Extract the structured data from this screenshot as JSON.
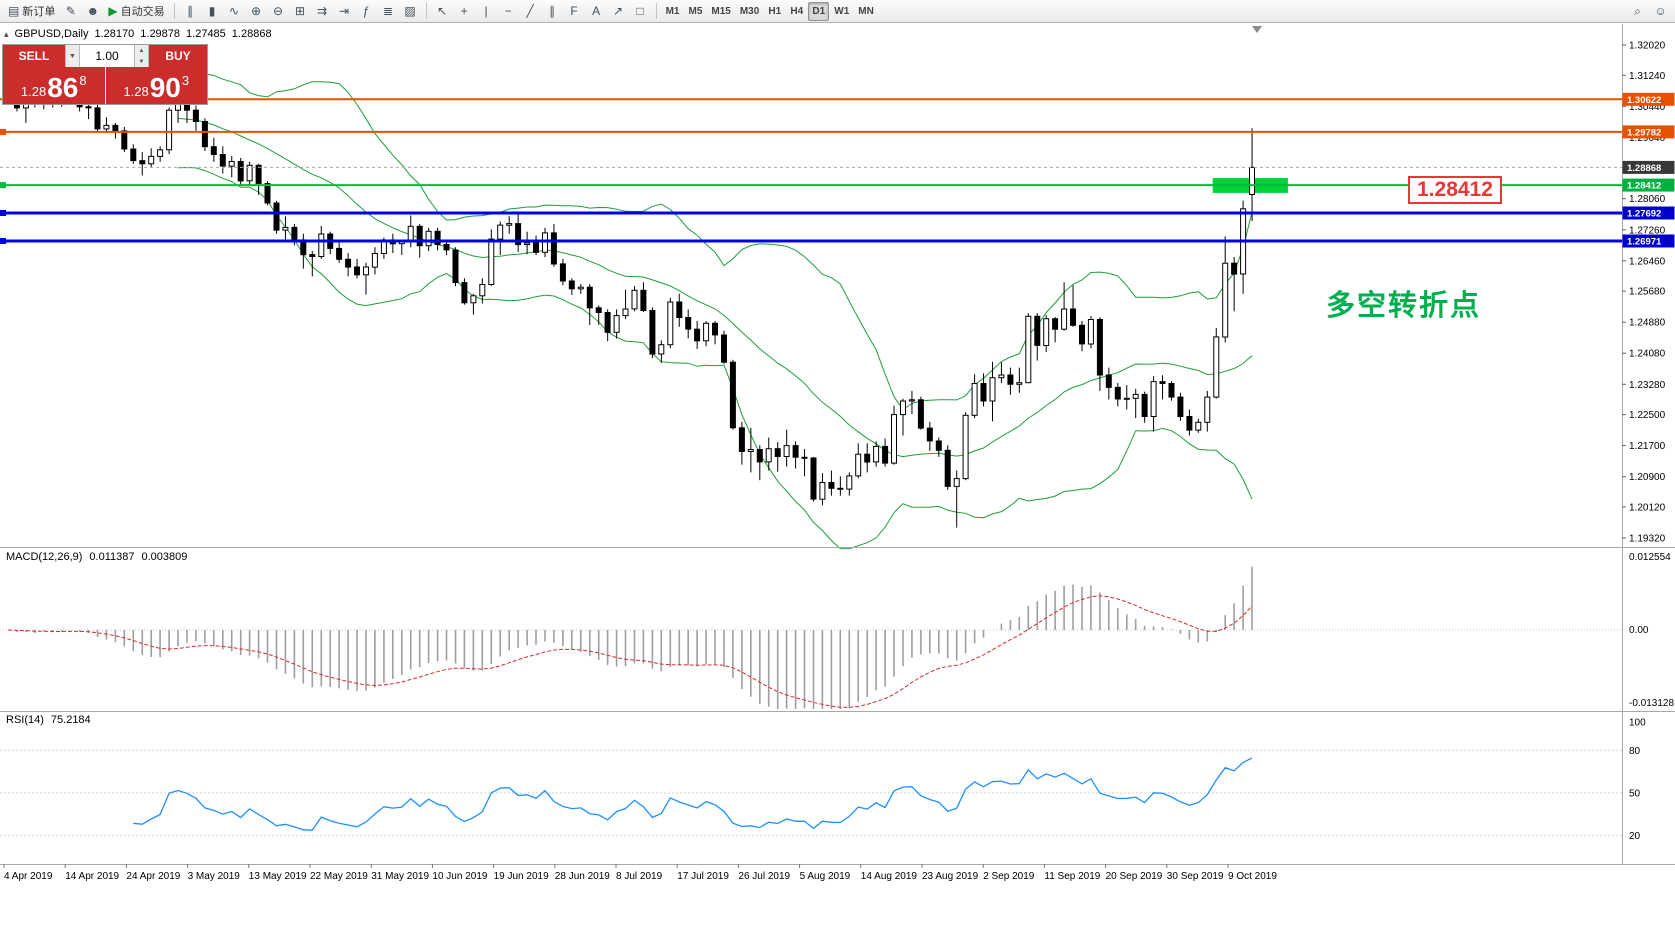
{
  "toolbar": {
    "left_buttons": [
      {
        "name": "new-order",
        "label": "新订单",
        "glyph": "▤"
      },
      {
        "name": "metaeditor",
        "glyph": "✎"
      },
      {
        "name": "community",
        "glyph": "☻"
      },
      {
        "name": "autotrading",
        "label": "自动交易",
        "glyph": "▶"
      }
    ],
    "chart_buttons": [
      {
        "name": "bar-chart",
        "glyph": "∥"
      },
      {
        "name": "candlestick-chart",
        "glyph": "▮"
      },
      {
        "name": "line-chart",
        "glyph": "∿"
      },
      {
        "name": "zoom-in",
        "glyph": "⊕"
      },
      {
        "name": "zoom-out",
        "glyph": "⊖"
      },
      {
        "name": "tile-windows",
        "glyph": "⊞"
      },
      {
        "name": "auto-scroll",
        "glyph": "⇉"
      },
      {
        "name": "chart-shift",
        "glyph": "⇥"
      },
      {
        "name": "indicators",
        "glyph": "ƒ"
      },
      {
        "name": "periods",
        "glyph": "≣"
      },
      {
        "name": "templates",
        "glyph": "▨"
      }
    ],
    "draw_buttons": [
      {
        "name": "cursor",
        "glyph": "↖"
      },
      {
        "name": "crosshair",
        "glyph": "+"
      },
      {
        "name": "vertical-line",
        "glyph": "|"
      },
      {
        "name": "horizontal-line",
        "glyph": "−"
      },
      {
        "name": "trendline",
        "glyph": "╱"
      },
      {
        "name": "channel",
        "glyph": "∥"
      },
      {
        "name": "fibonacci",
        "glyph": "F"
      },
      {
        "name": "text-tool",
        "glyph": "A"
      },
      {
        "name": "arrows-tool",
        "glyph": "↗"
      },
      {
        "name": "shapes-tool",
        "glyph": "□"
      }
    ],
    "timeframes": [
      "M1",
      "M5",
      "M15",
      "M30",
      "H1",
      "H4",
      "D1",
      "W1",
      "MN"
    ],
    "active_timeframe": "D1",
    "right_buttons": [
      {
        "name": "search",
        "glyph": "⌕"
      },
      {
        "name": "feedback",
        "glyph": "☺"
      }
    ]
  },
  "icons": {
    "collapse": "▴",
    "spinner_up": "▲",
    "spinner_down": "▼",
    "volume_dropdown": "▼"
  },
  "chart": {
    "symbol_title": "GBPUSD,Daily",
    "open": "1.28170",
    "high": "1.29878",
    "low": "1.27485",
    "close": "1.28868",
    "one_click": {
      "sell_label": "SELL",
      "buy_label": "BUY",
      "volume": "1.00",
      "sell_price": [
        "1.28",
        "86",
        "8"
      ],
      "buy_price": [
        "1.28",
        "90",
        "3"
      ]
    },
    "annotation": "多空转折点",
    "price_box_label": "1.28412",
    "current_price": 1.28868,
    "levels": [
      {
        "price": 1.30622,
        "label": "1.30622",
        "color": "#e65100",
        "width": 2,
        "tag_color": "#e65100",
        "left_marker": false,
        "dash": false
      },
      {
        "price": 1.29782,
        "label": "1.29782",
        "color": "#e65100",
        "width": 2,
        "tag_color": "#e65100",
        "left_marker": true,
        "dash": false
      },
      {
        "price": 1.28868,
        "label": "1.28868",
        "color": "#aaaaaa",
        "width": 1,
        "tag_color": "#383838",
        "left_marker": false,
        "dash": true
      },
      {
        "price": 1.28412,
        "label": "1.28412",
        "color": "#00be3c",
        "width": 2,
        "tag_color": "#00b140",
        "left_marker": true,
        "dash": false
      },
      {
        "price": 1.27692,
        "label": "1.27692",
        "color": "#0000e6",
        "width": 3,
        "tag_color": "#0000cc",
        "left_marker": true,
        "dash": false
      },
      {
        "price": 1.26971,
        "label": "1.26971",
        "color": "#0000e6",
        "width": 3,
        "tag_color": "#0000cc",
        "left_marker": true,
        "dash": false
      }
    ],
    "green_zone": {
      "price_top": 1.2859,
      "price_bottom": 1.2821,
      "from_candle": 134.6,
      "to_candle": 143.0,
      "color": "#00d435"
    },
    "y_ticks": [
      1.3202,
      1.3124,
      1.3044,
      1.2964,
      1.2886,
      1.2806,
      1.2726,
      1.2646,
      1.2568,
      1.2488,
      1.2408,
      1.2328,
      1.225,
      1.217,
      1.209,
      1.2012,
      1.1932
    ],
    "dates": [
      "4 Apr 2019",
      "14 Apr 2019",
      "24 Apr 2019",
      "3 May 2019",
      "13 May 2019",
      "22 May 2019",
      "31 May 2019",
      "10 Jun 2019",
      "19 Jun 2019",
      "28 Jun 2019",
      "8 Jul 2019",
      "17 Jul 2019",
      "26 Jul 2019",
      "5 Aug 2019",
      "14 Aug 2019",
      "23 Aug 2019",
      "2 Sep 2019",
      "11 Sep 2019",
      "20 Sep 2019",
      "30 Sep 2019",
      "9 Oct 2019"
    ],
    "bollinger_period": 20,
    "bollinger_deviation": 2,
    "bollinger_color": "#1f9d3c"
  },
  "chart_data": {
    "type": "candlestick",
    "symbol": "GBPUSD",
    "timeframe": "Daily",
    "candles": [
      [
        1.313,
        1.3141,
        1.306,
        1.3077
      ],
      [
        1.3077,
        1.3105,
        1.3031,
        1.304
      ],
      [
        1.304,
        1.307,
        1.3001,
        1.3064
      ],
      [
        1.3064,
        1.3095,
        1.3041,
        1.3052
      ],
      [
        1.3052,
        1.31,
        1.3036,
        1.3091
      ],
      [
        1.3091,
        1.3099,
        1.3041,
        1.3054
      ],
      [
        1.3054,
        1.309,
        1.3043,
        1.3074
      ],
      [
        1.3074,
        1.311,
        1.3061,
        1.3098
      ],
      [
        1.3098,
        1.3106,
        1.3031,
        1.3043
      ],
      [
        1.3043,
        1.3056,
        1.3011,
        1.304
      ],
      [
        1.304,
        1.3048,
        1.2979,
        1.2986
      ],
      [
        1.2986,
        1.3016,
        1.2976,
        1.2995
      ],
      [
        1.2995,
        1.3001,
        1.2961,
        1.2981
      ],
      [
        1.2981,
        1.2991,
        1.2926,
        1.2934
      ],
      [
        1.2934,
        1.2946,
        1.2896,
        1.2904
      ],
      [
        1.2904,
        1.2926,
        1.2866,
        1.2896
      ],
      [
        1.2896,
        1.2936,
        1.2886,
        1.2915
      ],
      [
        1.2915,
        1.2941,
        1.2901,
        1.2932
      ],
      [
        1.2932,
        1.3041,
        1.2921,
        1.3034
      ],
      [
        1.3034,
        1.3062,
        1.3001,
        1.305
      ],
      [
        1.305,
        1.3056,
        1.3001,
        1.3034
      ],
      [
        1.3034,
        1.3046,
        1.2981,
        1.3005
      ],
      [
        1.3005,
        1.3013,
        1.2929,
        1.294
      ],
      [
        1.294,
        1.2963,
        1.2901,
        1.292
      ],
      [
        1.292,
        1.2941,
        1.2871,
        1.289
      ],
      [
        1.289,
        1.2916,
        1.2861,
        1.2902
      ],
      [
        1.2902,
        1.2911,
        1.2841,
        1.2852
      ],
      [
        1.2852,
        1.2901,
        1.2841,
        1.2892
      ],
      [
        1.2892,
        1.2896,
        1.2816,
        1.2845
      ],
      [
        1.2845,
        1.2851,
        1.2789,
        1.2795
      ],
      [
        1.2795,
        1.2801,
        1.2716,
        1.2725
      ],
      [
        1.2725,
        1.2761,
        1.2701,
        1.2732
      ],
      [
        1.2732,
        1.2741,
        1.2686,
        1.27
      ],
      [
        1.27,
        1.2716,
        1.2626,
        1.2662
      ],
      [
        1.2662,
        1.2671,
        1.2606,
        1.2657
      ],
      [
        1.2657,
        1.2736,
        1.2651,
        1.2715
      ],
      [
        1.2715,
        1.2721,
        1.2663,
        1.2678
      ],
      [
        1.2678,
        1.2701,
        1.2641,
        1.265
      ],
      [
        1.265,
        1.2666,
        1.2606,
        1.263
      ],
      [
        1.263,
        1.2651,
        1.2601,
        1.261
      ],
      [
        1.261,
        1.2641,
        1.2559,
        1.263
      ],
      [
        1.263,
        1.2681,
        1.2611,
        1.2665
      ],
      [
        1.2665,
        1.2706,
        1.2651,
        1.27
      ],
      [
        1.27,
        1.2716,
        1.2666,
        1.269
      ],
      [
        1.269,
        1.2701,
        1.2661,
        1.2695
      ],
      [
        1.2695,
        1.2763,
        1.2681,
        1.2735
      ],
      [
        1.2735,
        1.2741,
        1.2654,
        1.2685
      ],
      [
        1.2685,
        1.2731,
        1.2671,
        1.2722
      ],
      [
        1.2722,
        1.2731,
        1.2673,
        1.2688
      ],
      [
        1.2688,
        1.2701,
        1.2661,
        1.2674
      ],
      [
        1.2674,
        1.2681,
        1.2581,
        1.259
      ],
      [
        1.259,
        1.2601,
        1.2533,
        1.2538
      ],
      [
        1.2538,
        1.2561,
        1.2507,
        1.2556
      ],
      [
        1.2556,
        1.2601,
        1.2536,
        1.2585
      ],
      [
        1.2585,
        1.2727,
        1.2581,
        1.2702
      ],
      [
        1.2702,
        1.2747,
        1.2661,
        1.2738
      ],
      [
        1.2738,
        1.2761,
        1.2716,
        1.2742
      ],
      [
        1.2742,
        1.277,
        1.2669,
        1.2688
      ],
      [
        1.2688,
        1.2721,
        1.2663,
        1.2692
      ],
      [
        1.2692,
        1.2711,
        1.2661,
        1.2668
      ],
      [
        1.2668,
        1.2731,
        1.2656,
        1.2718
      ],
      [
        1.2718,
        1.2741,
        1.2631,
        1.2638
      ],
      [
        1.2638,
        1.2651,
        1.2583,
        1.2594
      ],
      [
        1.2594,
        1.2601,
        1.2558,
        1.2574
      ],
      [
        1.2574,
        1.2586,
        1.2561,
        1.2578
      ],
      [
        1.2578,
        1.2586,
        1.2481,
        1.2525
      ],
      [
        1.2525,
        1.2531,
        1.2481,
        1.2513
      ],
      [
        1.2513,
        1.2521,
        1.2439,
        1.2462
      ],
      [
        1.2462,
        1.2521,
        1.2446,
        1.2505
      ],
      [
        1.2505,
        1.2572,
        1.2496,
        1.2522
      ],
      [
        1.2522,
        1.2581,
        1.2516,
        1.257
      ],
      [
        1.257,
        1.2591,
        1.2514,
        1.2518
      ],
      [
        1.2518,
        1.2526,
        1.2396,
        1.2406
      ],
      [
        1.2406,
        1.2441,
        1.2383,
        1.243
      ],
      [
        1.243,
        1.2551,
        1.2421,
        1.254
      ],
      [
        1.254,
        1.2561,
        1.2476,
        1.25
      ],
      [
        1.25,
        1.2521,
        1.2446,
        1.247
      ],
      [
        1.247,
        1.2491,
        1.2419,
        1.244
      ],
      [
        1.244,
        1.2491,
        1.2426,
        1.2485
      ],
      [
        1.2485,
        1.2491,
        1.2431,
        1.2455
      ],
      [
        1.2455,
        1.2466,
        1.2381,
        1.2385
      ],
      [
        1.2385,
        1.2391,
        1.2211,
        1.2216
      ],
      [
        1.2216,
        1.2231,
        1.2121,
        1.2155
      ],
      [
        1.2155,
        1.2216,
        1.2101,
        1.216
      ],
      [
        1.216,
        1.2171,
        1.2081,
        1.2128
      ],
      [
        1.2128,
        1.2191,
        1.2106,
        1.2162
      ],
      [
        1.2162,
        1.2179,
        1.2103,
        1.2142
      ],
      [
        1.2142,
        1.2211,
        1.2116,
        1.217
      ],
      [
        1.217,
        1.2181,
        1.2111,
        1.214
      ],
      [
        1.214,
        1.2161,
        1.2091,
        1.2138
      ],
      [
        1.2138,
        1.2141,
        1.2026,
        1.2032
      ],
      [
        1.2032,
        1.2099,
        1.2016,
        1.2075
      ],
      [
        1.2075,
        1.2106,
        1.2041,
        1.206
      ],
      [
        1.206,
        1.2091,
        1.2041,
        1.2058
      ],
      [
        1.2058,
        1.2101,
        1.2041,
        1.2092
      ],
      [
        1.2092,
        1.2176,
        1.2086,
        1.2148
      ],
      [
        1.2148,
        1.2176,
        1.2101,
        1.2128
      ],
      [
        1.2128,
        1.2181,
        1.2116,
        1.2168
      ],
      [
        1.2168,
        1.2188,
        1.2116,
        1.2125
      ],
      [
        1.2125,
        1.2273,
        1.2121,
        1.225
      ],
      [
        1.225,
        1.2291,
        1.2196,
        1.2285
      ],
      [
        1.2285,
        1.2311,
        1.2251,
        1.2288
      ],
      [
        1.2288,
        1.2296,
        1.2211,
        1.2215
      ],
      [
        1.2215,
        1.2231,
        1.2156,
        1.2182
      ],
      [
        1.2182,
        1.2191,
        1.2141,
        1.2158
      ],
      [
        1.2158,
        1.2171,
        1.2056,
        1.2065
      ],
      [
        1.2065,
        1.2106,
        1.1959,
        1.2085
      ],
      [
        1.2085,
        1.2256,
        1.2081,
        1.2248
      ],
      [
        1.2248,
        1.2354,
        1.2241,
        1.233
      ],
      [
        1.233,
        1.2356,
        1.2271,
        1.2285
      ],
      [
        1.2285,
        1.2386,
        1.2233,
        1.2345
      ],
      [
        1.2345,
        1.2385,
        1.2331,
        1.2352
      ],
      [
        1.2352,
        1.2371,
        1.2301,
        1.2328
      ],
      [
        1.2328,
        1.2371,
        1.2306,
        1.2332
      ],
      [
        1.2332,
        1.2511,
        1.2331,
        1.2503
      ],
      [
        1.2503,
        1.2511,
        1.2389,
        1.2428
      ],
      [
        1.2428,
        1.2506,
        1.2411,
        1.2497
      ],
      [
        1.2497,
        1.2501,
        1.2436,
        1.247
      ],
      [
        1.247,
        1.2591,
        1.2466,
        1.2522
      ],
      [
        1.2522,
        1.2583,
        1.2476,
        1.248
      ],
      [
        1.248,
        1.2491,
        1.2413,
        1.2432
      ],
      [
        1.2432,
        1.2504,
        1.2421,
        1.2495
      ],
      [
        1.2495,
        1.2501,
        1.2311,
        1.2352
      ],
      [
        1.2352,
        1.2371,
        1.2289,
        1.232
      ],
      [
        1.232,
        1.2331,
        1.2271,
        1.229
      ],
      [
        1.229,
        1.2326,
        1.2263,
        1.2292
      ],
      [
        1.2292,
        1.2316,
        1.2241,
        1.2302
      ],
      [
        1.2302,
        1.2309,
        1.2229,
        1.2245
      ],
      [
        1.2245,
        1.2349,
        1.2206,
        1.2335
      ],
      [
        1.2335,
        1.2351,
        1.2289,
        1.233
      ],
      [
        1.233,
        1.2336,
        1.2286,
        1.2295
      ],
      [
        1.2295,
        1.2306,
        1.2234,
        1.2245
      ],
      [
        1.2245,
        1.2263,
        1.2196,
        1.221
      ],
      [
        1.221,
        1.2239,
        1.2203,
        1.223
      ],
      [
        1.223,
        1.2311,
        1.2206,
        1.2295
      ],
      [
        1.2295,
        1.2473,
        1.2291,
        1.245
      ],
      [
        1.245,
        1.2709,
        1.2436,
        1.264
      ],
      [
        1.264,
        1.2656,
        1.2516,
        1.2612
      ],
      [
        1.2612,
        1.2801,
        1.2561,
        1.278
      ],
      [
        1.2817,
        1.29878,
        1.27485,
        1.28868
      ]
    ]
  },
  "macd": {
    "name": "MACD(12,26,9)",
    "fast": 12,
    "slow": 26,
    "signal_period": 9,
    "main_value": "0.011387",
    "signal_value": "0.003809",
    "axis_labels": [
      "0.012554",
      "0.00",
      "-0.013128"
    ]
  },
  "rsi": {
    "name": "RSI(14)",
    "period": 14,
    "value": "75.2184",
    "axis_labels": [
      "100",
      "80",
      "50",
      "20"
    ],
    "levels": [
      80,
      50,
      20
    ]
  }
}
